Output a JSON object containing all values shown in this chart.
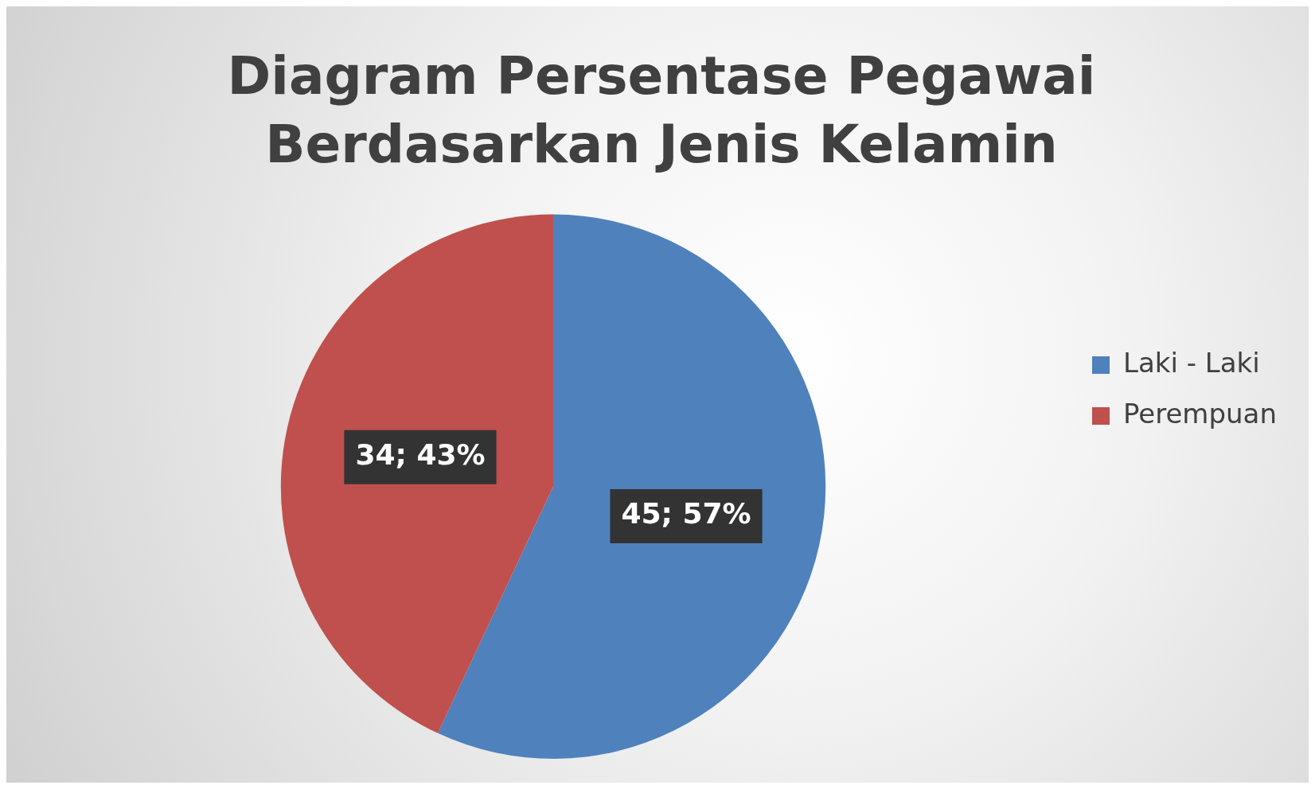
{
  "chart_data": {
    "type": "pie",
    "title": "Diagram Persentase Pegawai\nBerdasarkan Jenis Kelamin",
    "categories": [
      "Laki - Laki",
      "Perempuan"
    ],
    "values": [
      45,
      34
    ],
    "colors": [
      "#4f81bd",
      "#c0504d"
    ],
    "value_labels": [
      "45; 57%",
      "34; 43%"
    ],
    "legend": "right"
  }
}
